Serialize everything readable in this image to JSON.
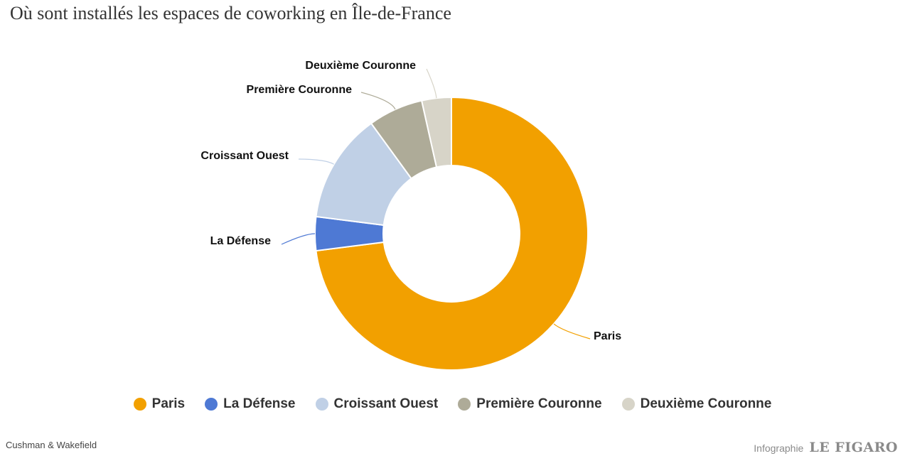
{
  "title": "Où sont installés les espaces de coworking en Île-de-France",
  "source": "Cushman & Wakefield",
  "credit": {
    "label": "Infographie",
    "brand": "LE FIGARO"
  },
  "legend": [
    {
      "label": "Paris",
      "color": "#f2a000"
    },
    {
      "label": "La Défense",
      "color": "#4e79d4"
    },
    {
      "label": "Croissant Ouest",
      "color": "#c0d0e6"
    },
    {
      "label": "Première Couronne",
      "color": "#aeab98"
    },
    {
      "label": "Deuxième Couronne",
      "color": "#d7d4c8"
    }
  ],
  "chart_data": {
    "type": "pie",
    "variant": "donut",
    "title": "Où sont installés les espaces de coworking en Île-de-France",
    "categories": [
      "Paris",
      "La Défense",
      "Croissant Ouest",
      "Première Couronne",
      "Deuxième Couronne"
    ],
    "values": [
      73,
      4,
      13,
      6.5,
      3.5
    ],
    "colors": [
      "#f2a000",
      "#4e79d4",
      "#c0d0e6",
      "#aeab98",
      "#d7d4c8"
    ],
    "start_angle": "12 o'clock, clockwise",
    "data_labels": [
      "Paris",
      "La Défense",
      "Croissant Ouest",
      "Première Couronne",
      "Deuxième Couronne"
    ],
    "legend_position": "bottom"
  }
}
